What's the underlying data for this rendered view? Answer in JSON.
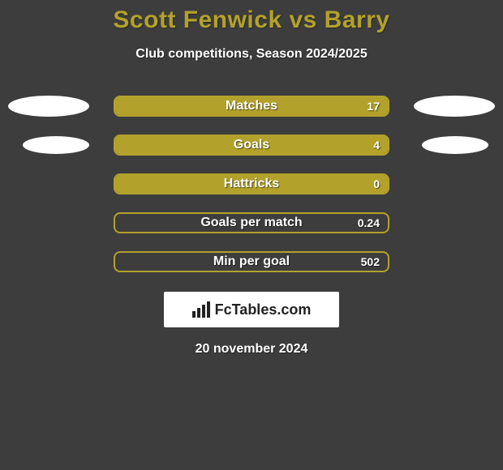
{
  "background_color": "#3d3d3d",
  "title": {
    "text": "Scott Fenwick vs Barry",
    "color": "#b2a22b",
    "fontsize": 30
  },
  "subtitle": "Club competitions, Season 2024/2025",
  "bar_color": "#b2a22b",
  "bar_border_color": "#b2a22b",
  "label_color": "#ffffff",
  "rows": [
    {
      "label": "Matches",
      "value": "17",
      "left_fill": 43,
      "right_fill": 57,
      "left_ellipse": true,
      "right_ellipse": true,
      "ellipse_narrow": false
    },
    {
      "label": "Goals",
      "value": "4",
      "left_fill": 43,
      "right_fill": 57,
      "left_ellipse": true,
      "right_ellipse": true,
      "ellipse_narrow": true
    },
    {
      "label": "Hattricks",
      "value": "0",
      "left_fill": 43,
      "right_fill": 57,
      "left_ellipse": false,
      "right_ellipse": false,
      "ellipse_narrow": false
    },
    {
      "label": "Goals per match",
      "value": "0.24",
      "left_fill": 0,
      "right_fill": 0,
      "left_ellipse": false,
      "right_ellipse": false,
      "ellipse_narrow": false
    },
    {
      "label": "Min per goal",
      "value": "502",
      "left_fill": 0,
      "right_fill": 0,
      "left_ellipse": false,
      "right_ellipse": false,
      "ellipse_narrow": false
    }
  ],
  "logo_text": "FcTables.com",
  "date": "20 november 2024"
}
